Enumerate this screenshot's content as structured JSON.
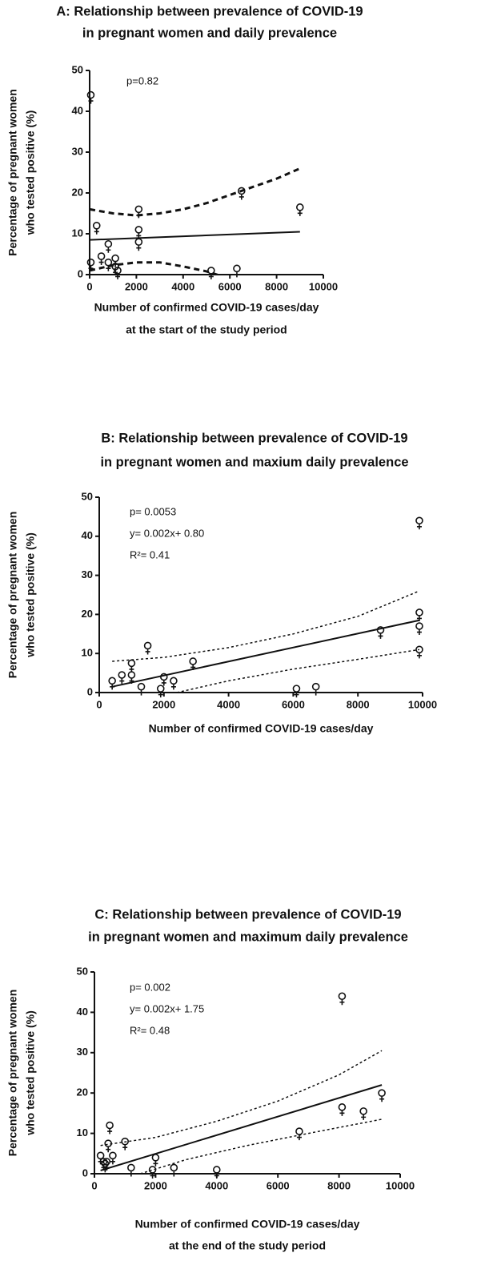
{
  "chart_data": [
    {
      "type": "scatter",
      "title": [
        "A: Relationship between prevalence of COVID-19",
        "in pregnant women and daily prevalence"
      ],
      "xlabel": [
        "Number of confirmed COVID-19 cases/day",
        "at the start of the study period"
      ],
      "ylabel": [
        "Percentage of pregnant women",
        "who tested positive  (%)"
      ],
      "annotations": [
        "p=0.82"
      ],
      "x": [
        50,
        50,
        300,
        500,
        800,
        800,
        1100,
        1100,
        1200,
        2100,
        2100,
        2100,
        5200,
        6300,
        6500,
        9000
      ],
      "values": [
        44,
        3,
        12,
        4.5,
        7.5,
        3,
        4,
        2,
        1,
        16,
        11,
        8,
        1,
        1.5,
        20.5,
        16.5
      ],
      "fit": {
        "x": [
          0,
          9000
        ],
        "y": [
          8.5,
          10.5
        ]
      },
      "ci_upper": {
        "x": [
          0,
          1000,
          2000,
          3000,
          4000,
          5000,
          6000,
          7000,
          8000,
          9000
        ],
        "y": [
          16,
          15,
          14.5,
          15,
          16,
          17.5,
          19.5,
          21.5,
          23.5,
          26
        ]
      },
      "ci_lower": {
        "x": [
          0,
          1000,
          2000,
          3000,
          4000,
          5000,
          6000
        ],
        "y": [
          1,
          2.3,
          3,
          3,
          2,
          0.8,
          -1
        ]
      },
      "line_style": {
        "fit": "solid",
        "ci": "dashed"
      },
      "xlim": [
        0,
        10000
      ],
      "ylim": [
        0,
        50
      ],
      "xticks": [
        0,
        2000,
        4000,
        6000,
        8000,
        10000
      ],
      "yticks": [
        0,
        10,
        20,
        30,
        40,
        50
      ]
    },
    {
      "type": "scatter",
      "title": [
        "B: Relationship between prevalence of COVID-19",
        "in pregnant women and maxium daily prevalence"
      ],
      "xlabel": [
        "Number of confirmed COVID-19 cases/day"
      ],
      "ylabel": [
        "Percentage of pregnant women",
        "who tested positive  (%)"
      ],
      "annotations": [
        "p= 0.0053",
        "y= 0.002x+ 0.80",
        "R²= 0.41"
      ],
      "x": [
        400,
        700,
        1000,
        1000,
        1300,
        1500,
        1900,
        2000,
        2300,
        2900,
        6100,
        6700,
        8700,
        9900,
        9900,
        9900,
        9900
      ],
      "values": [
        3,
        4.5,
        7.5,
        4.5,
        1.5,
        12,
        1,
        4,
        3,
        8,
        1,
        1.5,
        16,
        44,
        20.5,
        17,
        11
      ],
      "fit": {
        "x": [
          400,
          9900
        ],
        "y": [
          1.5,
          18.5
        ]
      },
      "ci_upper": {
        "x": [
          400,
          2000,
          4000,
          6000,
          8000,
          9900
        ],
        "y": [
          8,
          9,
          11.5,
          15,
          19.5,
          26
        ]
      },
      "ci_lower": {
        "x": [
          2400,
          4000,
          6000,
          8000,
          9900
        ],
        "y": [
          0,
          3,
          6,
          8.5,
          11
        ]
      },
      "line_style": {
        "fit": "solid",
        "ci": "dotted"
      },
      "xlim": [
        0,
        10000
      ],
      "ylim": [
        0,
        50
      ],
      "xticks": [
        0,
        2000,
        4000,
        6000,
        8000,
        10000
      ],
      "yticks": [
        0,
        10,
        20,
        30,
        40,
        50
      ]
    },
    {
      "type": "scatter",
      "title": [
        "C: Relationship between prevalence of COVID-19",
        "in pregnant women and maximum daily prevalence"
      ],
      "xlabel": [
        "Number of confirmed COVID-19 cases/day",
        "at the end of the study period"
      ],
      "ylabel": [
        "Percentage of pregnant women",
        "who tested positive  (%)"
      ],
      "annotations": [
        "p= 0.002",
        "y= 0.002x+ 1.75",
        "R²= 0.48"
      ],
      "x": [
        200,
        300,
        350,
        400,
        450,
        500,
        600,
        1000,
        1200,
        1900,
        2000,
        2600,
        4000,
        6700,
        8100,
        8100,
        8800,
        9400
      ],
      "values": [
        4.5,
        3,
        2.5,
        3,
        7.5,
        12,
        4.5,
        8,
        1.5,
        1,
        4,
        1.5,
        1,
        10.5,
        44,
        16.5,
        15.5,
        20
      ],
      "fit": {
        "x": [
          200,
          9400
        ],
        "y": [
          0.8,
          22
        ]
      },
      "ci_upper": {
        "x": [
          200,
          2000,
          4000,
          6000,
          8000,
          9400
        ],
        "y": [
          7,
          9,
          13,
          18,
          24.5,
          30.5
        ]
      },
      "ci_lower": {
        "x": [
          1500,
          3000,
          5000,
          7000,
          9400
        ],
        "y": [
          0,
          3.5,
          7,
          10,
          13.5
        ]
      },
      "line_style": {
        "fit": "solid",
        "ci": "dotted"
      },
      "xlim": [
        0,
        10000
      ],
      "ylim": [
        0,
        50
      ],
      "xticks": [
        0,
        2000,
        4000,
        6000,
        8000,
        10000
      ],
      "yticks": [
        0,
        10,
        20,
        30,
        40,
        50
      ]
    }
  ]
}
